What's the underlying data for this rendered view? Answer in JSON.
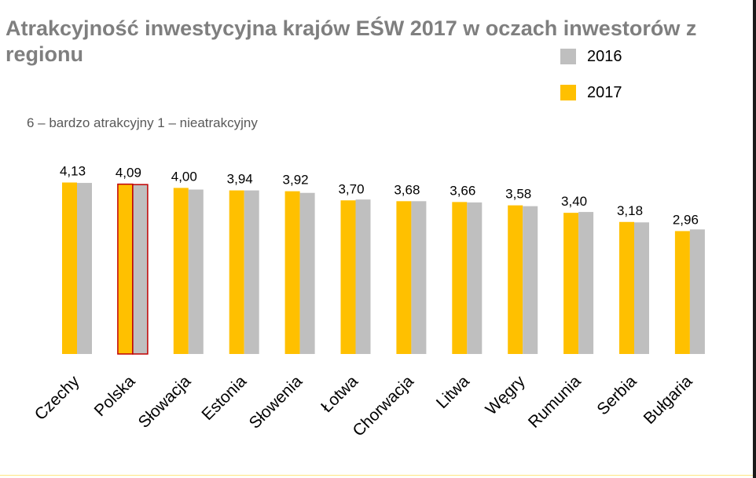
{
  "chart_data": {
    "type": "bar",
    "title": "Atrakcyjność inwestycyjna krajów EŚW 2017 w oczach inwestorów z regionu",
    "subtitle": "6 – bardzo atrakcyjny 1 – nieatrakcyjny",
    "categories": [
      "Czechy",
      "Polska",
      "Słowacja",
      "Estonia",
      "Słowenia",
      "Łotwa",
      "Chorwacja",
      "Litwa",
      "Węgry",
      "Rumunia",
      "Serbia",
      "Bułgaria"
    ],
    "series": [
      {
        "name": "2017",
        "color": "#ffc000",
        "values": [
          4.13,
          4.09,
          4.0,
          3.94,
          3.92,
          3.7,
          3.68,
          3.66,
          3.58,
          3.4,
          3.18,
          2.96
        ]
      },
      {
        "name": "2016",
        "color": "#bfbfbf",
        "values": [
          4.12,
          4.08,
          3.96,
          3.94,
          3.88,
          3.72,
          3.68,
          3.65,
          3.56,
          3.42,
          3.17,
          3.0
        ]
      }
    ],
    "data_labels": [
      "4,13",
      "4,09",
      "4,00",
      "3,94",
      "3,92",
      "3,70",
      "3,68",
      "3,66",
      "3,58",
      "3,40",
      "3,18",
      "2,96"
    ],
    "highlighted_category": "Polska",
    "highlight_color": "#c00000",
    "ylim": [
      0,
      4.2
    ],
    "grid": false,
    "legend_position": "top-right",
    "xlabel": "",
    "ylabel": ""
  },
  "legend": [
    {
      "label": "2016",
      "color": "#bfbfbf"
    },
    {
      "label": "2017",
      "color": "#ffc000"
    }
  ]
}
